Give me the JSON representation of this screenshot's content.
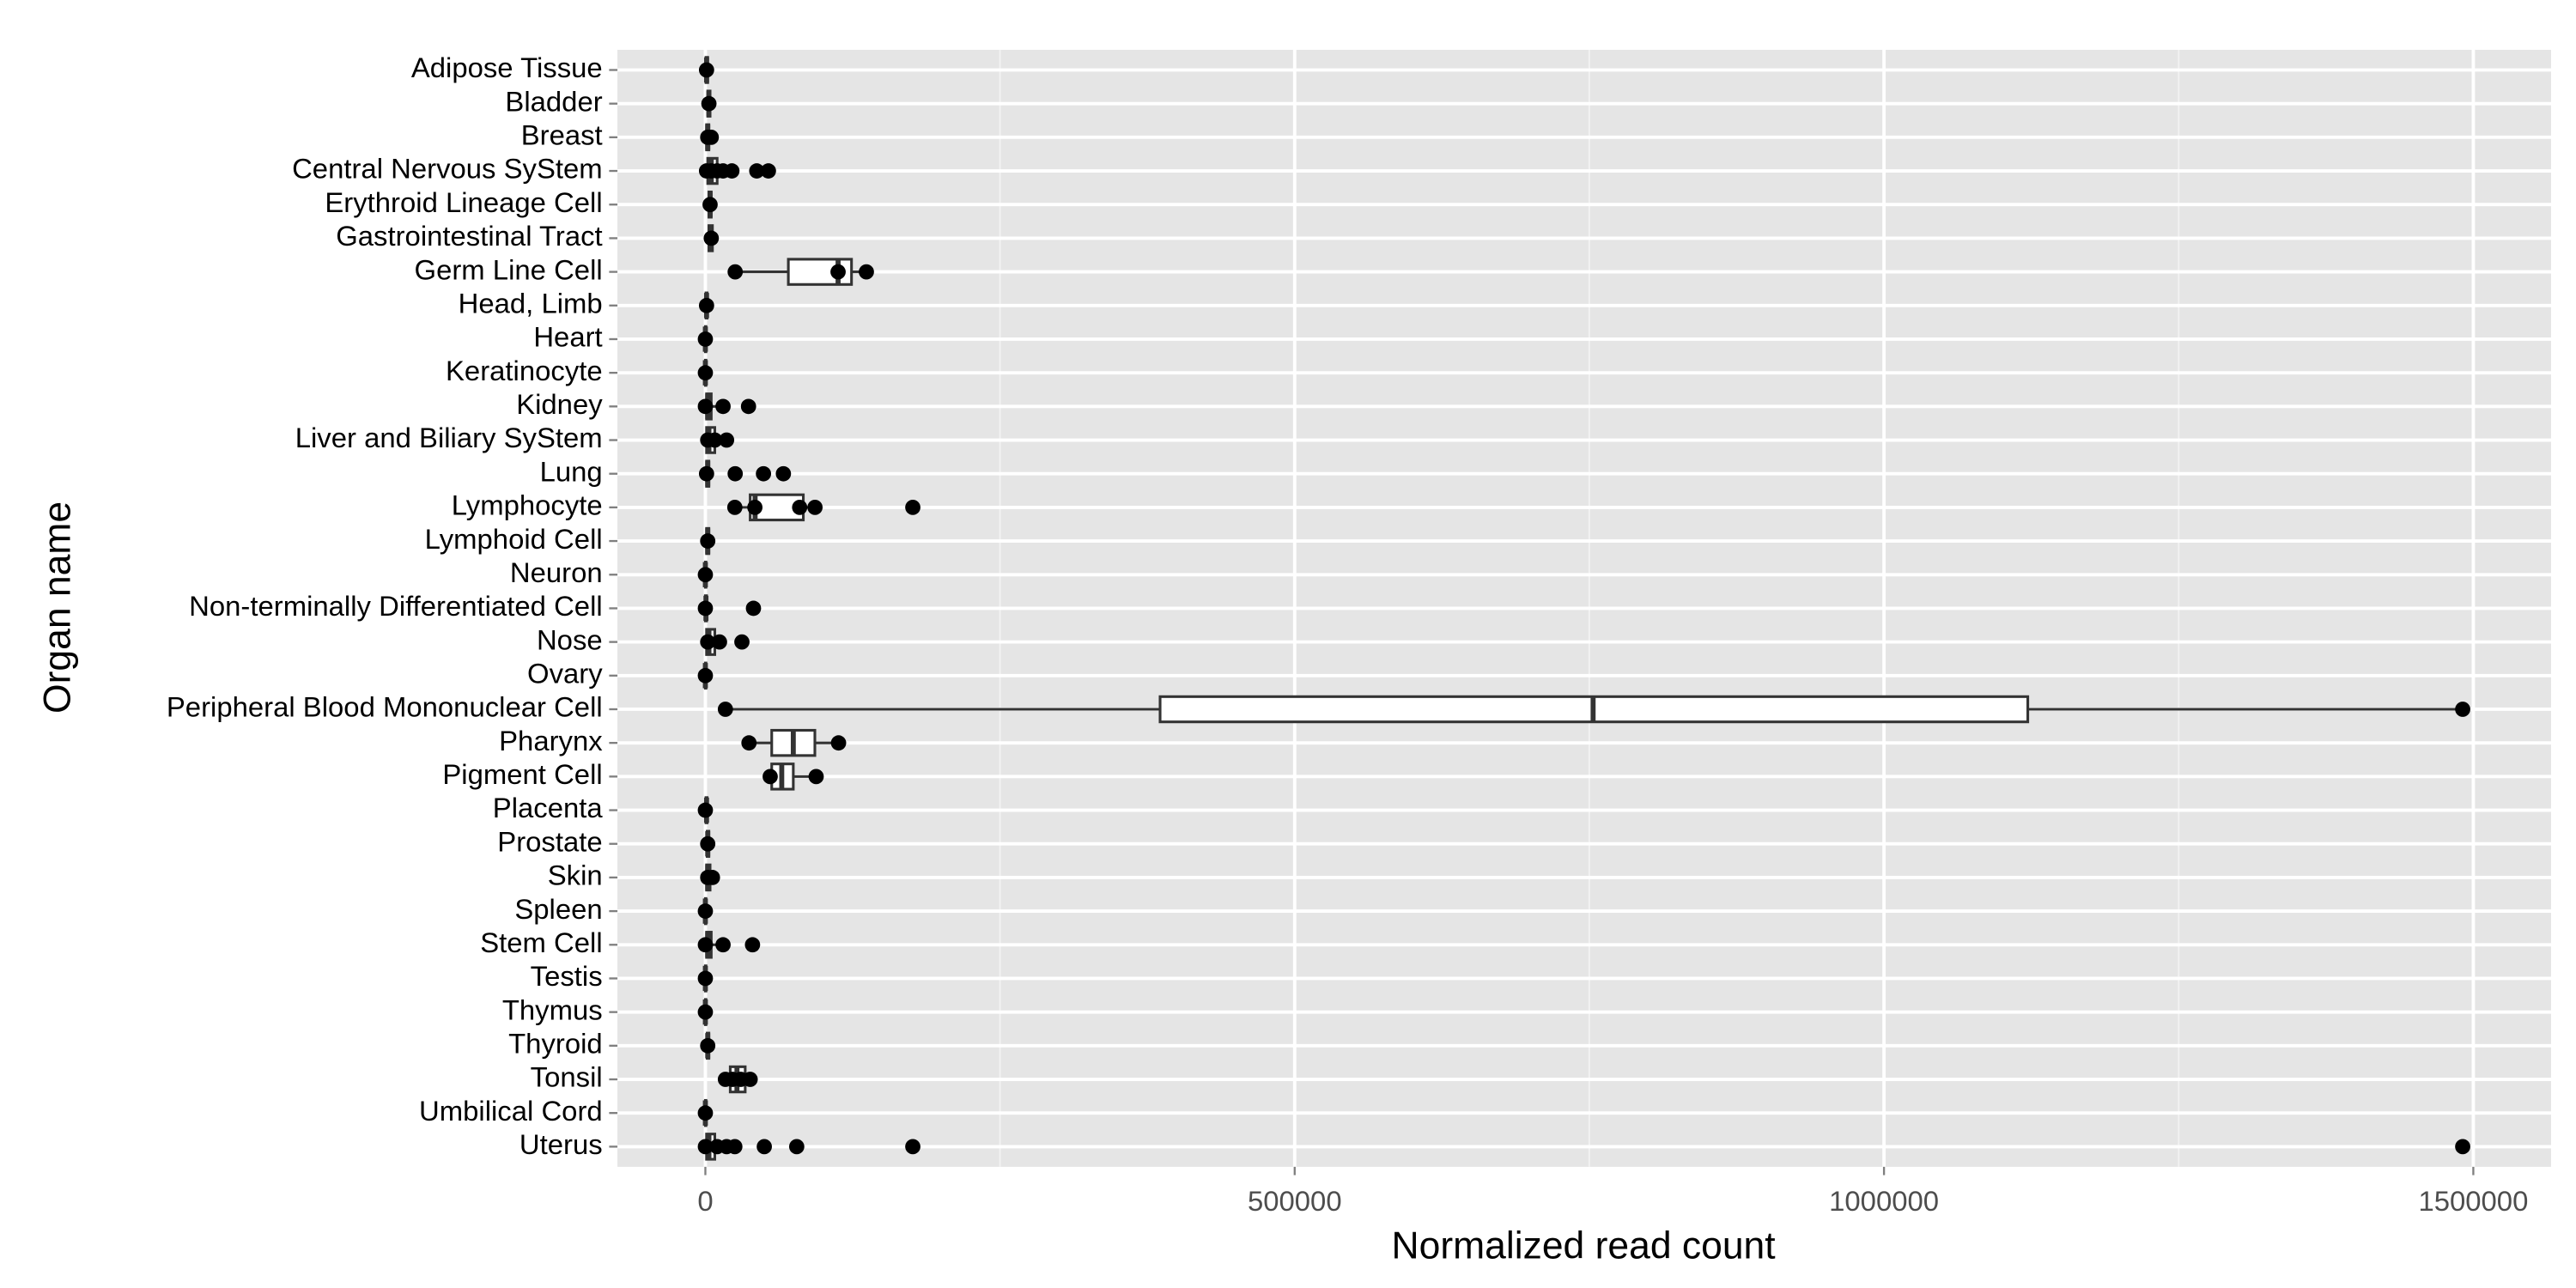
{
  "chart_data": {
    "type": "boxplot",
    "xlabel": "Normalized read count",
    "ylabel": "Organ name",
    "xlim": [
      -74600,
      1566000
    ],
    "xticks": [
      0,
      500000,
      1000000,
      1500000
    ],
    "grid": true,
    "color": "#000000",
    "box_fill": "#ffffff",
    "categories": [
      "Adipose Tissue",
      "Bladder",
      "Breast",
      "Central Nervous SyStem",
      "Erythroid Lineage Cell",
      "Gastrointestinal Tract",
      "Germ Line Cell",
      "Head, Limb",
      "Heart",
      "Keratinocyte",
      "Kidney",
      "Liver and Biliary SyStem",
      "Lung",
      "Lymphocyte",
      "Lymphoid Cell",
      "Neuron",
      "Non-terminally Differentiated Cell",
      "Nose",
      "Ovary",
      "Peripheral Blood Mononuclear Cell",
      "Pharynx",
      "Pigment Cell",
      "Placenta",
      "Prostate",
      "Skin",
      "Spleen",
      "Stem Cell",
      "Testis",
      "Thymus",
      "Thyroid",
      "Tonsil",
      "Umbilical Cord",
      "Uterus"
    ],
    "boxes": [
      {
        "min": 0,
        "q1": 500,
        "median": 1000,
        "q3": 2000,
        "max": 3000
      },
      {
        "min": 1000,
        "q1": 2000,
        "median": 3000,
        "q3": 4000,
        "max": 5000
      },
      {
        "min": 0,
        "q1": 1000,
        "median": 2000,
        "q3": 3000,
        "max": 5000
      },
      {
        "min": 0,
        "q1": 2000,
        "median": 5000,
        "q3": 10000,
        "max": 20000
      },
      {
        "min": 2000,
        "q1": 3000,
        "median": 4000,
        "q3": 5000,
        "max": 6000
      },
      {
        "min": 2000,
        "q1": 3000,
        "median": 4000,
        "q3": 6000,
        "max": 8000
      },
      {
        "min": 25300,
        "q1": 70400,
        "median": 112600,
        "q3": 124000,
        "max": 136600
      },
      {
        "min": 0,
        "q1": 500,
        "median": 1000,
        "q3": 1500,
        "max": 2000
      },
      {
        "min": 0,
        "q1": 0,
        "median": 0,
        "q3": 500,
        "max": 1000
      },
      {
        "min": 0,
        "q1": 0,
        "median": 0,
        "q3": 500,
        "max": 1000
      },
      {
        "min": 0,
        "q1": 1000,
        "median": 2000,
        "q3": 5000,
        "max": 15000
      },
      {
        "min": 0,
        "q1": 1000,
        "median": 3000,
        "q3": 8000,
        "max": 18000
      },
      {
        "min": 0,
        "q1": 1000,
        "median": 2000,
        "q3": 3000,
        "max": 5000
      },
      {
        "min": 22500,
        "q1": 38000,
        "median": 42200,
        "q3": 83100,
        "max": 92900
      },
      {
        "min": 0,
        "q1": 1000,
        "median": 2000,
        "q3": 3000,
        "max": 5000
      },
      {
        "min": 0,
        "q1": 0,
        "median": 0,
        "q3": 500,
        "max": 1000
      },
      {
        "min": 0,
        "q1": 0,
        "median": 500,
        "q3": 1000,
        "max": 2000
      },
      {
        "min": 0,
        "q1": 1000,
        "median": 3000,
        "q3": 8000,
        "max": 12000
      },
      {
        "min": 0,
        "q1": 0,
        "median": 0,
        "q3": 500,
        "max": 1000
      },
      {
        "min": 16900,
        "q1": 385800,
        "median": 753200,
        "q3": 1122000,
        "max": 1491000
      },
      {
        "min": 36600,
        "q1": 56300,
        "median": 74600,
        "q3": 92900,
        "max": 112600
      },
      {
        "min": 54900,
        "q1": 56300,
        "median": 64800,
        "q3": 74600,
        "max": 94300
      },
      {
        "min": 0,
        "q1": 500,
        "median": 1000,
        "q3": 1500,
        "max": 2000
      },
      {
        "min": 1000,
        "q1": 1500,
        "median": 2000,
        "q3": 3000,
        "max": 4000
      },
      {
        "min": 0,
        "q1": 1000,
        "median": 2000,
        "q3": 4000,
        "max": 6000
      },
      {
        "min": 0,
        "q1": 0,
        "median": 0,
        "q3": 500,
        "max": 1000
      },
      {
        "min": 0,
        "q1": 1000,
        "median": 2000,
        "q3": 5000,
        "max": 15000
      },
      {
        "min": 0,
        "q1": 0,
        "median": 0,
        "q3": 500,
        "max": 1000
      },
      {
        "min": 0,
        "q1": 0,
        "median": 0,
        "q3": 500,
        "max": 1000
      },
      {
        "min": 1000,
        "q1": 1500,
        "median": 2000,
        "q3": 3000,
        "max": 4000
      },
      {
        "min": 16900,
        "q1": 21100,
        "median": 26800,
        "q3": 33800,
        "max": 38000
      },
      {
        "min": 0,
        "q1": 0,
        "median": 0,
        "q3": 500,
        "max": 1000
      },
      {
        "min": 0,
        "q1": 1000,
        "median": 3000,
        "q3": 8000,
        "max": 25000
      }
    ],
    "points": [
      [
        1000
      ],
      [
        3000
      ],
      [
        2000,
        5000
      ],
      [
        1000,
        5000,
        10000,
        15000,
        22500,
        43600,
        53500
      ],
      [
        4000
      ],
      [
        5000
      ],
      [
        25300,
        112600,
        136600
      ],
      [
        1000
      ],
      [
        0
      ],
      [
        0
      ],
      [
        0,
        15000,
        36600
      ],
      [
        2000,
        8000,
        18000
      ],
      [
        1000,
        25300,
        49300,
        66200
      ],
      [
        25000,
        42000,
        80000,
        93000,
        176000
      ],
      [
        2000
      ],
      [
        0
      ],
      [
        0,
        40800
      ],
      [
        2000,
        12000,
        31000
      ],
      [
        0
      ],
      [
        17000,
        1491000
      ],
      [
        37000,
        113000
      ],
      [
        55000,
        94000
      ],
      [
        0
      ],
      [
        2000
      ],
      [
        2000,
        6000
      ],
      [
        0
      ],
      [
        0,
        15000,
        40000
      ],
      [
        0
      ],
      [
        0
      ],
      [
        2000
      ],
      [
        17000,
        23000,
        30000,
        38000
      ],
      [
        0
      ],
      [
        0,
        10000,
        18000,
        25000,
        50000,
        77500,
        176000,
        1491000
      ]
    ]
  }
}
